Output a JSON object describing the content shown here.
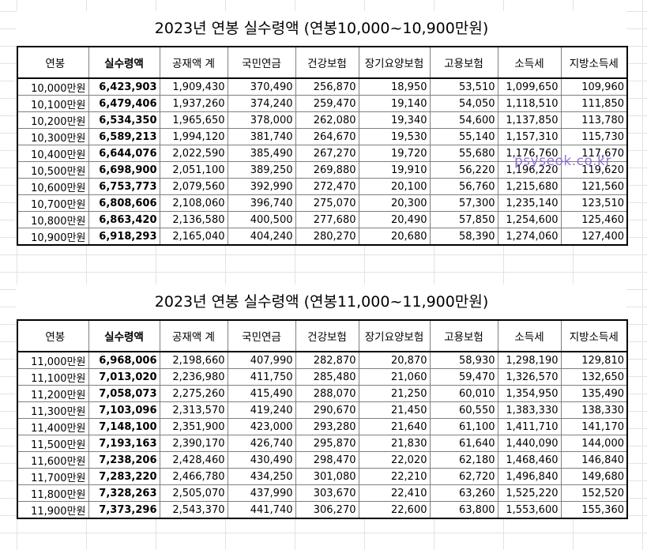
{
  "columns": [
    "연봉",
    "실수령액",
    "공재액 계",
    "국민연금",
    "건강보험",
    "장기요양보험",
    "고용보험",
    "소득세",
    "지방소득세"
  ],
  "tables": [
    {
      "title": "2023년 연봉 실수령액 (연봉10,000~10,900만원)",
      "rows": [
        [
          "10,000만원",
          "6,423,903",
          "1,909,430",
          "370,490",
          "256,870",
          "18,950",
          "53,510",
          "1,099,650",
          "109,960"
        ],
        [
          "10,100만원",
          "6,479,406",
          "1,937,260",
          "374,240",
          "259,470",
          "19,140",
          "54,050",
          "1,118,510",
          "111,850"
        ],
        [
          "10,200만원",
          "6,534,350",
          "1,965,650",
          "378,000",
          "262,080",
          "19,340",
          "54,600",
          "1,137,850",
          "113,780"
        ],
        [
          "10,300만원",
          "6,589,213",
          "1,994,120",
          "381,740",
          "264,670",
          "19,530",
          "55,140",
          "1,157,310",
          "115,730"
        ],
        [
          "10,400만원",
          "6,644,076",
          "2,022,590",
          "385,490",
          "267,270",
          "19,720",
          "55,680",
          "1,176,760",
          "117,670"
        ],
        [
          "10,500만원",
          "6,698,900",
          "2,051,100",
          "389,250",
          "269,880",
          "19,910",
          "56,220",
          "1,196,220",
          "119,620"
        ],
        [
          "10,600만원",
          "6,753,773",
          "2,079,560",
          "392,990",
          "272,470",
          "20,100",
          "56,760",
          "1,215,680",
          "121,560"
        ],
        [
          "10,700만원",
          "6,808,606",
          "2,108,060",
          "396,740",
          "275,070",
          "20,300",
          "57,300",
          "1,235,140",
          "123,510"
        ],
        [
          "10,800만원",
          "6,863,420",
          "2,136,580",
          "400,500",
          "277,680",
          "20,490",
          "57,850",
          "1,254,600",
          "125,460"
        ],
        [
          "10,900만원",
          "6,918,293",
          "2,165,040",
          "404,240",
          "280,270",
          "20,680",
          "58,390",
          "1,274,060",
          "127,400"
        ]
      ]
    },
    {
      "title": "2023년 연봉 실수령액 (연봉11,000~11,900만원)",
      "rows": [
        [
          "11,000만원",
          "6,968,006",
          "2,198,660",
          "407,990",
          "282,870",
          "20,870",
          "58,930",
          "1,298,190",
          "129,810"
        ],
        [
          "11,100만원",
          "7,013,020",
          "2,236,980",
          "411,750",
          "285,480",
          "21,060",
          "59,470",
          "1,326,570",
          "132,650"
        ],
        [
          "11,200만원",
          "7,058,073",
          "2,275,260",
          "415,490",
          "288,070",
          "21,250",
          "60,010",
          "1,354,950",
          "135,490"
        ],
        [
          "11,300만원",
          "7,103,096",
          "2,313,570",
          "419,240",
          "290,670",
          "21,450",
          "60,550",
          "1,383,330",
          "138,330"
        ],
        [
          "11,400만원",
          "7,148,100",
          "2,351,900",
          "423,000",
          "293,280",
          "21,640",
          "61,100",
          "1,411,710",
          "141,170"
        ],
        [
          "11,500만원",
          "7,193,163",
          "2,390,170",
          "426,740",
          "295,870",
          "21,830",
          "61,640",
          "1,440,090",
          "144,000"
        ],
        [
          "11,600만원",
          "7,238,206",
          "2,428,460",
          "430,490",
          "298,470",
          "22,020",
          "62,180",
          "1,468,460",
          "146,840"
        ],
        [
          "11,700만원",
          "7,283,220",
          "2,466,780",
          "434,250",
          "301,080",
          "22,210",
          "62,720",
          "1,496,840",
          "149,680"
        ],
        [
          "11,800만원",
          "7,328,263",
          "2,505,070",
          "437,990",
          "303,670",
          "22,410",
          "63,260",
          "1,525,220",
          "152,520"
        ],
        [
          "11,900만원",
          "7,373,296",
          "2,543,370",
          "441,740",
          "306,270",
          "22,600",
          "63,800",
          "1,553,600",
          "155,360"
        ]
      ]
    }
  ],
  "watermark": "psyseok.co.kr",
  "colors": {
    "border": "#000000",
    "inner_border": "#7f7f7f",
    "gridline": "#e3e3e3",
    "watermark": "#8b63d9"
  }
}
